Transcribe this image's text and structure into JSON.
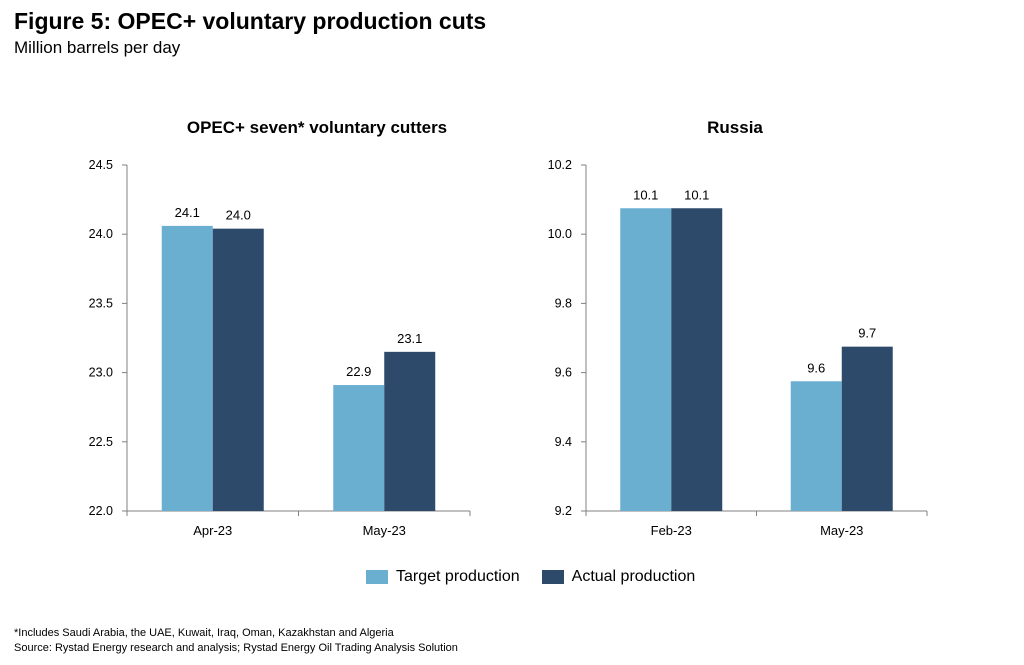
{
  "figure": {
    "title": "Figure 5: OPEC+ voluntary production cuts",
    "subtitle": "Million barrels per day"
  },
  "legend": {
    "target_label": "Target production",
    "actual_label": "Actual production"
  },
  "notes": {
    "footnote": "*Includes Saudi Arabia, the UAE, Kuwait, Iraq, Oman, Kazakhstan and Algeria",
    "source": "Source: Rystad Energy research and analysis; Rystad Energy Oil Trading Analysis Solution"
  },
  "colors": {
    "target": "#6aaed0",
    "actual": "#2e4a6b"
  },
  "chart_data": [
    {
      "type": "bar",
      "title": "OPEC+ seven* voluntary cutters",
      "categories": [
        "Apr-23",
        "May-23"
      ],
      "series": [
        {
          "name": "Target production",
          "values": [
            24.06,
            22.91
          ],
          "labels": [
            "24.1",
            "22.9"
          ]
        },
        {
          "name": "Actual production",
          "values": [
            24.04,
            23.15
          ],
          "labels": [
            "24.0",
            "23.1"
          ]
        }
      ],
      "ylim": [
        22.0,
        24.5
      ],
      "yticks": [
        "22.0",
        "22.5",
        "23.0",
        "23.5",
        "24.0",
        "24.5"
      ],
      "grid": false
    },
    {
      "type": "bar",
      "title": "Russia",
      "categories": [
        "Feb-23",
        "May-23"
      ],
      "series": [
        {
          "name": "Target production",
          "values": [
            10.075,
            9.575
          ],
          "labels": [
            "10.1",
            "9.6"
          ]
        },
        {
          "name": "Actual production",
          "values": [
            10.075,
            9.675
          ],
          "labels": [
            "10.1",
            "9.7"
          ]
        }
      ],
      "ylim": [
        9.2,
        10.2
      ],
      "yticks": [
        "9.2",
        "9.4",
        "9.6",
        "9.8",
        "10.0",
        "10.2"
      ],
      "grid": false
    }
  ]
}
